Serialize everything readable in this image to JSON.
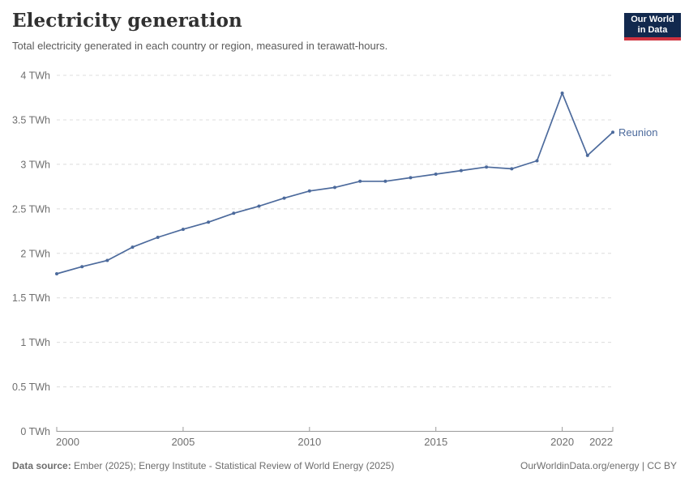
{
  "header": {
    "title": "Electricity generation",
    "subtitle": "Total electricity generated in each country or region, measured in terawatt-hours.",
    "logo": {
      "line1": "Our World",
      "line2": "in Data"
    }
  },
  "chart_data": {
    "type": "line",
    "title": "Electricity generation",
    "unit": "TWh",
    "x": [
      2000,
      2001,
      2002,
      2003,
      2004,
      2005,
      2006,
      2007,
      2008,
      2009,
      2010,
      2011,
      2012,
      2013,
      2014,
      2015,
      2016,
      2017,
      2018,
      2019,
      2020,
      2021,
      2022
    ],
    "series": [
      {
        "name": "Reunion",
        "color": "#4c6a9c",
        "values": [
          1.77,
          1.85,
          1.92,
          2.07,
          2.18,
          2.27,
          2.35,
          2.45,
          2.53,
          2.62,
          2.7,
          2.74,
          2.81,
          2.81,
          2.85,
          2.89,
          2.93,
          2.97,
          2.95,
          3.04,
          3.8,
          3.1,
          3.36
        ]
      }
    ],
    "xlim": [
      2000,
      2022
    ],
    "ylim": [
      0,
      4
    ],
    "xticks": [
      2000,
      2005,
      2010,
      2015,
      2020,
      2022
    ],
    "yticks": [
      0,
      0.5,
      1,
      1.5,
      2,
      2.5,
      3,
      3.5,
      4
    ],
    "ytick_labels": [
      "0 TWh",
      "0.5 TWh",
      "1 TWh",
      "1.5 TWh",
      "2 TWh",
      "2.5 TWh",
      "3 TWh",
      "3.5 TWh",
      "4 TWh"
    ],
    "grid": "horizontal-dashed",
    "legend_position": "line-end-label"
  },
  "footer": {
    "datasource_label": "Data source:",
    "datasource_text": " Ember (2025); Energy Institute - Statistical Review of World Energy (2025)",
    "credit": "OurWorldinData.org/energy | CC BY"
  },
  "colors": {
    "background": "#ffffff",
    "title": "#303030",
    "subtitle": "#5b5b5b",
    "footer": "#6e6e6e",
    "line": "#4c6a9c",
    "grid": "#dcdcdc",
    "axis": "#9a9a9a",
    "axis_text": "#6f6f6f",
    "logo_navy": "#12294e",
    "logo_red": "#cf323f"
  }
}
